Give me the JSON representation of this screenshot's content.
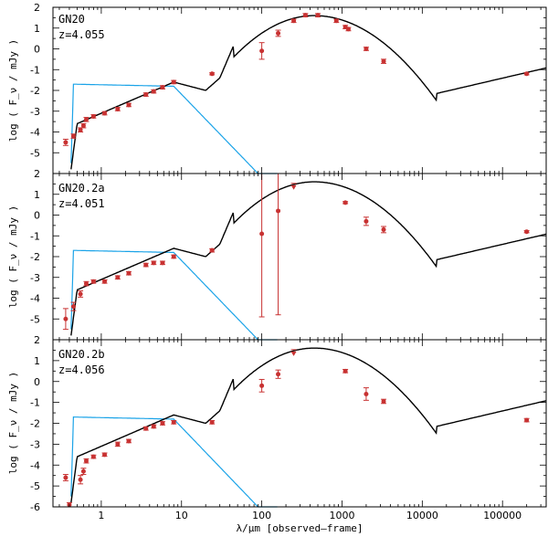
{
  "chart_data": {
    "type": "line",
    "xlabel": "λ/μm  [observed–frame]",
    "ylabel": "log ( F_ν / mJy )",
    "xscale": "log",
    "xlim": [
      0.25,
      350000
    ],
    "x_ticks": [
      1,
      10,
      100,
      1000,
      10000,
      100000
    ],
    "x_tick_labels": [
      "1",
      "10",
      "100",
      "1000",
      "10000",
      "100000"
    ],
    "colors": {
      "model": "#000000",
      "stellar": "#1aa3e8",
      "data": "#c83232"
    },
    "panels": [
      {
        "name": "GN20",
        "redshift_label": "z=4.055",
        "ylim": [
          -6,
          2
        ],
        "y_ticks": [
          -5,
          -4,
          -3,
          -2,
          -1,
          0,
          1,
          2
        ],
        "y_tick_labels": [
          "-5",
          "-4",
          "-3",
          "-2",
          "-1",
          "0",
          "1",
          "2"
        ],
        "points": [
          {
            "x": 0.36,
            "y": -4.5,
            "err": 0.15
          },
          {
            "x": 0.45,
            "y": -4.2,
            "err": 0.1
          },
          {
            "x": 0.55,
            "y": -3.9,
            "err": 0.1
          },
          {
            "x": 0.6,
            "y": -3.7,
            "err": 0.1
          },
          {
            "x": 0.65,
            "y": -3.4,
            "err": 0.1
          },
          {
            "x": 0.8,
            "y": -3.25,
            "err": 0.08
          },
          {
            "x": 1.1,
            "y": -3.1,
            "err": 0.08
          },
          {
            "x": 1.6,
            "y": -2.9,
            "err": 0.08
          },
          {
            "x": 2.2,
            "y": -2.7,
            "err": 0.08
          },
          {
            "x": 3.6,
            "y": -2.2,
            "err": 0.08
          },
          {
            "x": 4.5,
            "y": -2.05,
            "err": 0.08
          },
          {
            "x": 5.8,
            "y": -1.85,
            "err": 0.08
          },
          {
            "x": 8.0,
            "y": -1.6,
            "err": 0.08
          },
          {
            "x": 24,
            "y": -1.2,
            "err": 0.05
          },
          {
            "x": 100,
            "y": -0.1,
            "err": 0.4
          },
          {
            "x": 160,
            "y": 0.75,
            "err": 0.15
          },
          {
            "x": 250,
            "y": 1.35,
            "err": 0.08
          },
          {
            "x": 350,
            "y": 1.62,
            "err": 0.08
          },
          {
            "x": 500,
            "y": 1.62,
            "err": 0.08
          },
          {
            "x": 850,
            "y": 1.35,
            "err": 0.08
          },
          {
            "x": 1100,
            "y": 1.05,
            "err": 0.08
          },
          {
            "x": 1200,
            "y": 0.95,
            "err": 0.08
          },
          {
            "x": 2000,
            "y": 0.0,
            "err": 0.08
          },
          {
            "x": 3300,
            "y": -0.6,
            "err": 0.1
          },
          {
            "x": 200000,
            "y": -1.2,
            "err": 0.05
          }
        ],
        "upper_limits": []
      },
      {
        "name": "GN20.2a",
        "redshift_label": "z=4.051",
        "ylim": [
          -6,
          2
        ],
        "y_ticks": [
          -5,
          -4,
          -3,
          -2,
          -1,
          0,
          1,
          2
        ],
        "y_tick_labels": [
          "-5",
          "-4",
          "-3",
          "-2",
          "-1",
          "0",
          "1",
          "2"
        ],
        "points": [
          {
            "x": 0.36,
            "y": -5.0,
            "err": 0.5
          },
          {
            "x": 0.45,
            "y": -4.4,
            "err": 0.2
          },
          {
            "x": 0.55,
            "y": -3.8,
            "err": 0.15
          },
          {
            "x": 0.65,
            "y": -3.3,
            "err": 0.1
          },
          {
            "x": 0.8,
            "y": -3.2,
            "err": 0.08
          },
          {
            "x": 1.1,
            "y": -3.2,
            "err": 0.08
          },
          {
            "x": 1.6,
            "y": -3.0,
            "err": 0.08
          },
          {
            "x": 2.2,
            "y": -2.8,
            "err": 0.08
          },
          {
            "x": 3.6,
            "y": -2.4,
            "err": 0.08
          },
          {
            "x": 4.5,
            "y": -2.3,
            "err": 0.08
          },
          {
            "x": 5.8,
            "y": -2.3,
            "err": 0.08
          },
          {
            "x": 8.0,
            "y": -2.0,
            "err": 0.08
          },
          {
            "x": 24,
            "y": -1.7,
            "err": 0.08
          },
          {
            "x": 100,
            "y": -0.9,
            "err": 4.0
          },
          {
            "x": 160,
            "y": 0.2,
            "err": 5.0
          },
          {
            "x": 1100,
            "y": 0.6,
            "err": 0.05
          },
          {
            "x": 2000,
            "y": -0.3,
            "err": 0.2
          },
          {
            "x": 3300,
            "y": -0.7,
            "err": 0.15
          },
          {
            "x": 200000,
            "y": -0.8,
            "err": 0.05
          }
        ],
        "upper_limits": [
          {
            "x": 250,
            "y": 1.35
          }
        ]
      },
      {
        "name": "GN20.2b",
        "redshift_label": "z=4.056",
        "ylim": [
          -6,
          2
        ],
        "y_ticks": [
          -6,
          -5,
          -4,
          -3,
          -2,
          -1,
          0,
          1,
          2
        ],
        "y_tick_labels": [
          "-6",
          "-5",
          "-4",
          "-3",
          "-2",
          "-1",
          "0",
          "1",
          "2"
        ],
        "points": [
          {
            "x": 0.36,
            "y": -4.6,
            "err": 0.15
          },
          {
            "x": 0.4,
            "y": -5.9,
            "err": 0.1
          },
          {
            "x": 0.55,
            "y": -4.7,
            "err": 0.2
          },
          {
            "x": 0.6,
            "y": -4.3,
            "err": 0.15
          },
          {
            "x": 0.65,
            "y": -3.8,
            "err": 0.1
          },
          {
            "x": 0.8,
            "y": -3.6,
            "err": 0.08
          },
          {
            "x": 1.1,
            "y": -3.5,
            "err": 0.08
          },
          {
            "x": 1.6,
            "y": -3.0,
            "err": 0.1
          },
          {
            "x": 2.2,
            "y": -2.85,
            "err": 0.08
          },
          {
            "x": 3.6,
            "y": -2.25,
            "err": 0.08
          },
          {
            "x": 4.5,
            "y": -2.15,
            "err": 0.08
          },
          {
            "x": 5.8,
            "y": -2.0,
            "err": 0.08
          },
          {
            "x": 8.0,
            "y": -1.95,
            "err": 0.08
          },
          {
            "x": 24,
            "y": -1.95,
            "err": 0.08
          },
          {
            "x": 100,
            "y": -0.2,
            "err": 0.3
          },
          {
            "x": 160,
            "y": 0.35,
            "err": 0.2
          },
          {
            "x": 1100,
            "y": 0.5,
            "err": 0.08
          },
          {
            "x": 2000,
            "y": -0.6,
            "err": 0.3
          },
          {
            "x": 3300,
            "y": -0.95,
            "err": 0.1
          },
          {
            "x": 200000,
            "y": -1.85,
            "err": 0.08
          }
        ],
        "upper_limits": [
          {
            "x": 250,
            "y": 1.35
          }
        ]
      }
    ]
  }
}
